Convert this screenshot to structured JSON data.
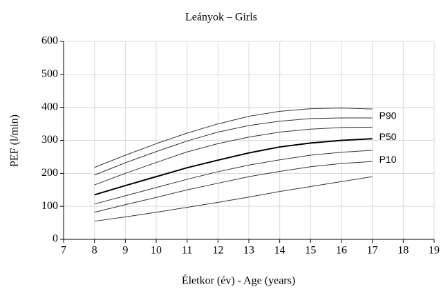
{
  "chart_data": {
    "type": "line",
    "title": "Leányok – Girls",
    "xlabel": "Életkor (év) - Age (years)",
    "ylabel": "PEF (l/min)",
    "x": [
      8,
      9,
      10,
      11,
      12,
      13,
      14,
      15,
      16,
      17
    ],
    "series": [
      {
        "color": "#333333",
        "width": 1,
        "values": [
          218,
          255,
          290,
          322,
          350,
          373,
          388,
          396,
          398,
          395
        ]
      },
      {
        "name": "P90",
        "color": "#333333",
        "width": 1,
        "values": [
          195,
          232,
          266,
          298,
          325,
          345,
          358,
          366,
          368,
          368
        ]
      },
      {
        "color": "#333333",
        "width": 1,
        "values": [
          165,
          200,
          233,
          265,
          290,
          310,
          325,
          334,
          339,
          340
        ]
      },
      {
        "name": "P50",
        "color": "#000000",
        "width": 2,
        "values": [
          135,
          163,
          190,
          217,
          240,
          262,
          280,
          292,
          300,
          305
        ]
      },
      {
        "color": "#333333",
        "width": 1,
        "values": [
          107,
          132,
          157,
          182,
          205,
          225,
          241,
          255,
          264,
          270
        ]
      },
      {
        "name": "P10",
        "color": "#333333",
        "width": 1,
        "values": [
          82,
          105,
          127,
          150,
          170,
          190,
          206,
          220,
          230,
          236
        ]
      },
      {
        "color": "#333333",
        "width": 1,
        "values": [
          55,
          68,
          82,
          97,
          112,
          128,
          145,
          160,
          175,
          190
        ]
      }
    ],
    "xlim": [
      7,
      19
    ],
    "xticks": [
      7,
      8,
      9,
      10,
      11,
      12,
      13,
      14,
      15,
      16,
      17,
      18,
      19
    ],
    "ylim": [
      0,
      600
    ],
    "yticks": [
      0,
      100,
      200,
      300,
      400,
      500,
      600
    ],
    "grid": true
  }
}
